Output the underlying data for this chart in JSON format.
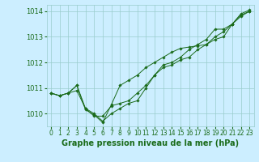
{
  "title": "Graphe pression niveau de la mer (hPa)",
  "bg_color": "#cceeff",
  "grid_color": "#99cccc",
  "line_color": "#1a6b1a",
  "marker_color": "#1a6b1a",
  "xlim": [
    -0.5,
    23.5
  ],
  "ylim": [
    1009.5,
    1014.25
  ],
  "yticks": [
    1010,
    1011,
    1012,
    1013,
    1014
  ],
  "xticks": [
    0,
    1,
    2,
    3,
    4,
    5,
    6,
    7,
    8,
    9,
    10,
    11,
    12,
    13,
    14,
    15,
    16,
    17,
    18,
    19,
    20,
    21,
    22,
    23
  ],
  "series": [
    [
      1010.8,
      1010.7,
      1010.8,
      1010.9,
      1010.2,
      1010.0,
      1009.7,
      1010.0,
      1010.2,
      1010.4,
      1010.5,
      1011.0,
      1011.5,
      1011.8,
      1011.9,
      1012.1,
      1012.2,
      1012.5,
      1012.7,
      1012.9,
      1013.0,
      1013.5,
      1013.8,
      1014.0
    ],
    [
      1010.8,
      1010.7,
      1010.8,
      1011.1,
      1010.2,
      1009.9,
      1009.9,
      1010.3,
      1010.4,
      1010.5,
      1010.8,
      1011.1,
      1011.5,
      1011.9,
      1012.0,
      1012.2,
      1012.5,
      1012.7,
      1012.9,
      1013.3,
      1013.3,
      1013.5,
      1013.9,
      1014.05
    ],
    [
      1010.8,
      1010.7,
      1010.8,
      1011.1,
      1010.15,
      1009.95,
      1009.65,
      1010.35,
      1011.1,
      1011.3,
      1011.5,
      1011.8,
      1012.0,
      1012.2,
      1012.4,
      1012.55,
      1012.6,
      1012.65,
      1012.7,
      1013.0,
      1013.2,
      1013.5,
      1013.85,
      1014.0
    ]
  ],
  "figsize": [
    3.2,
    2.0
  ],
  "dpi": 100,
  "title_fontsize": 7,
  "tick_fontsize": 5.5,
  "ytick_fontsize": 6
}
